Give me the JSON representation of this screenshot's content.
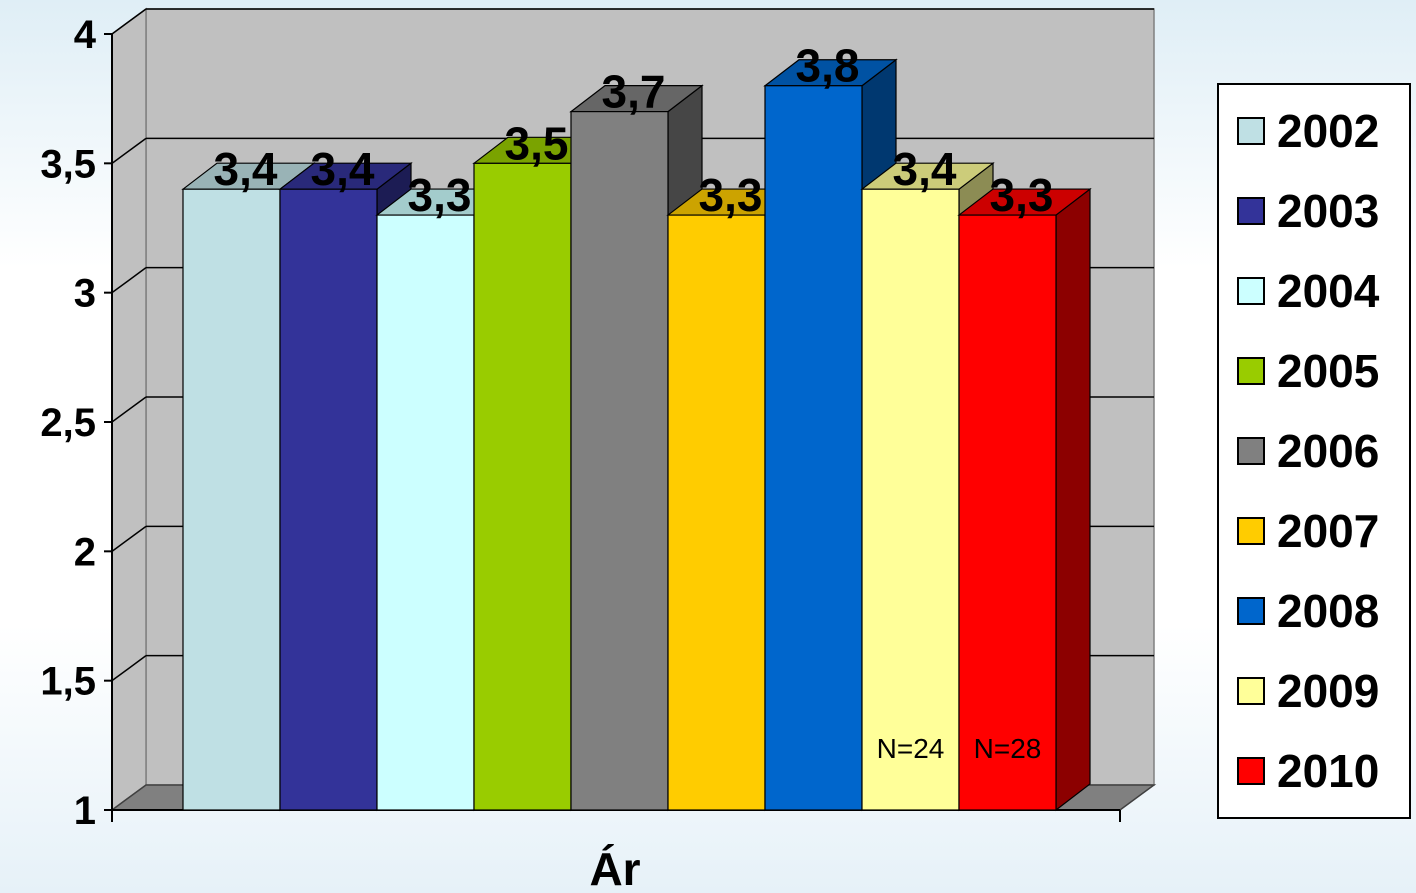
{
  "chart_data": {
    "type": "bar",
    "style": "3d-clustered-column",
    "xlabel": "Ár",
    "categories": [
      "Ár"
    ],
    "ylim": [
      1,
      4
    ],
    "yticks": [
      "1",
      "1,5",
      "2",
      "2,5",
      "3",
      "3,5",
      "4"
    ],
    "grid": true,
    "legend_position": "right",
    "series": [
      {
        "name": "2002",
        "value": 3.4,
        "label": "3,4",
        "color": "#bfe0e4"
      },
      {
        "name": "2003",
        "value": 3.4,
        "label": "3,4",
        "color": "#333399"
      },
      {
        "name": "2004",
        "value": 3.3,
        "label": "3,3",
        "color": "#ccffff"
      },
      {
        "name": "2005",
        "value": 3.5,
        "label": "3,5",
        "color": "#99cc00"
      },
      {
        "name": "2006",
        "value": 3.7,
        "label": "3,7",
        "color": "#808080"
      },
      {
        "name": "2007",
        "value": 3.3,
        "label": "3,3",
        "color": "#ffcc00"
      },
      {
        "name": "2008",
        "value": 3.8,
        "label": "3,8",
        "color": "#0066cc"
      },
      {
        "name": "2009",
        "value": 3.4,
        "label": "3,4",
        "color": "#ffff99",
        "note": "N=24"
      },
      {
        "name": "2010",
        "value": 3.3,
        "label": "3,3",
        "color": "#ff0000",
        "note": "N=28"
      }
    ]
  }
}
